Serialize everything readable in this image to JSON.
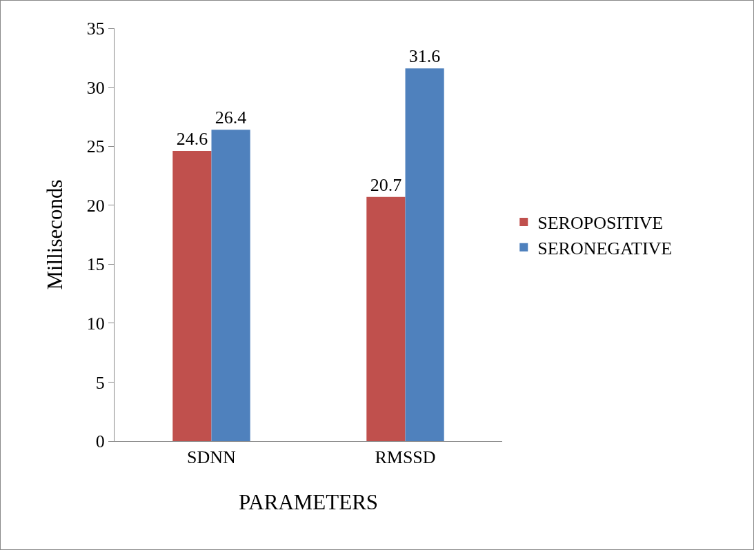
{
  "chart_data": {
    "type": "bar",
    "xlabel": "PARAMETERS",
    "ylabel": "Milliseconds",
    "categories": [
      "SDNN",
      "RMSSD"
    ],
    "series": [
      {
        "name": "SEROPOSITIVE",
        "color": "#c0504d",
        "values": [
          24.6,
          20.7
        ]
      },
      {
        "name": "SERONEGATIVE",
        "color": "#4f81bd",
        "values": [
          26.4,
          31.6
        ]
      }
    ],
    "ylim": [
      0,
      35
    ],
    "yticks": [
      0,
      5,
      10,
      15,
      20,
      25,
      30,
      35
    ],
    "data_labels": true,
    "legend": "right",
    "grid": false
  }
}
